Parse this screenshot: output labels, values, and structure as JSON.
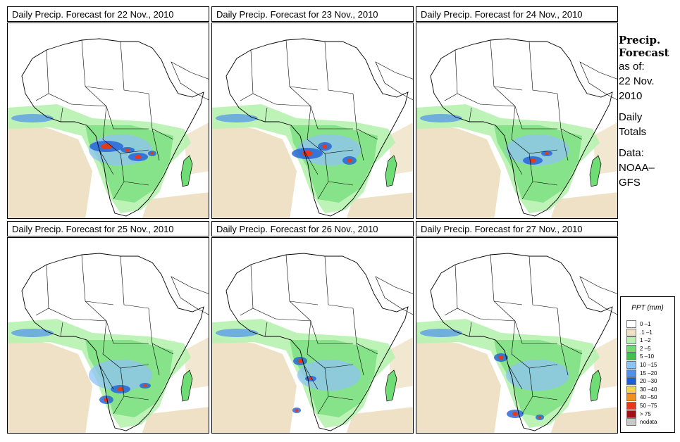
{
  "panels": [
    {
      "title": "Daily Precip. Forecast for  22 Nov., 2010"
    },
    {
      "title": "Daily Precip. Forecast for  23 Nov., 2010"
    },
    {
      "title": "Daily Precip. Forecast for  24 Nov., 2010"
    },
    {
      "title": "Daily Precip. Forecast for  25 Nov., 2010"
    },
    {
      "title": "Daily Precip. Forecast for  26 Nov., 2010"
    },
    {
      "title": "Daily Precip. Forecast for  27 Nov., 2010"
    }
  ],
  "sidebar": {
    "heading1": "Precip.",
    "heading2": "Forecast",
    "asof": "as of:",
    "date1": "22 Nov.",
    "date2": "2010",
    "totals1": "Daily",
    "totals2": "Totals",
    "data1": "Data:",
    "data2": "NOAA–",
    "data3": "GFS"
  },
  "legend": {
    "title": "PPT (mm)",
    "items": [
      {
        "label": "0 –1",
        "color": "#ffffff"
      },
      {
        "label": ".1 –1",
        "color": "#efe1c6"
      },
      {
        "label": "1 –2",
        "color": "#b7f2b0"
      },
      {
        "label": "2 –5",
        "color": "#6fdc75"
      },
      {
        "label": "5 –10",
        "color": "#43c04d"
      },
      {
        "label": "10 –15",
        "color": "#8fc3f5"
      },
      {
        "label": "15 –20",
        "color": "#4f90ea"
      },
      {
        "label": "20 –30",
        "color": "#1f5fd6"
      },
      {
        "label": "30 –40",
        "color": "#f7d34f"
      },
      {
        "label": "40 –50",
        "color": "#f38f1c"
      },
      {
        "label": "50 –75",
        "color": "#e53a1a"
      },
      {
        "label": "> 75",
        "color": "#a31212"
      },
      {
        "label": "nodata",
        "color": "#c8c8c8"
      }
    ]
  }
}
